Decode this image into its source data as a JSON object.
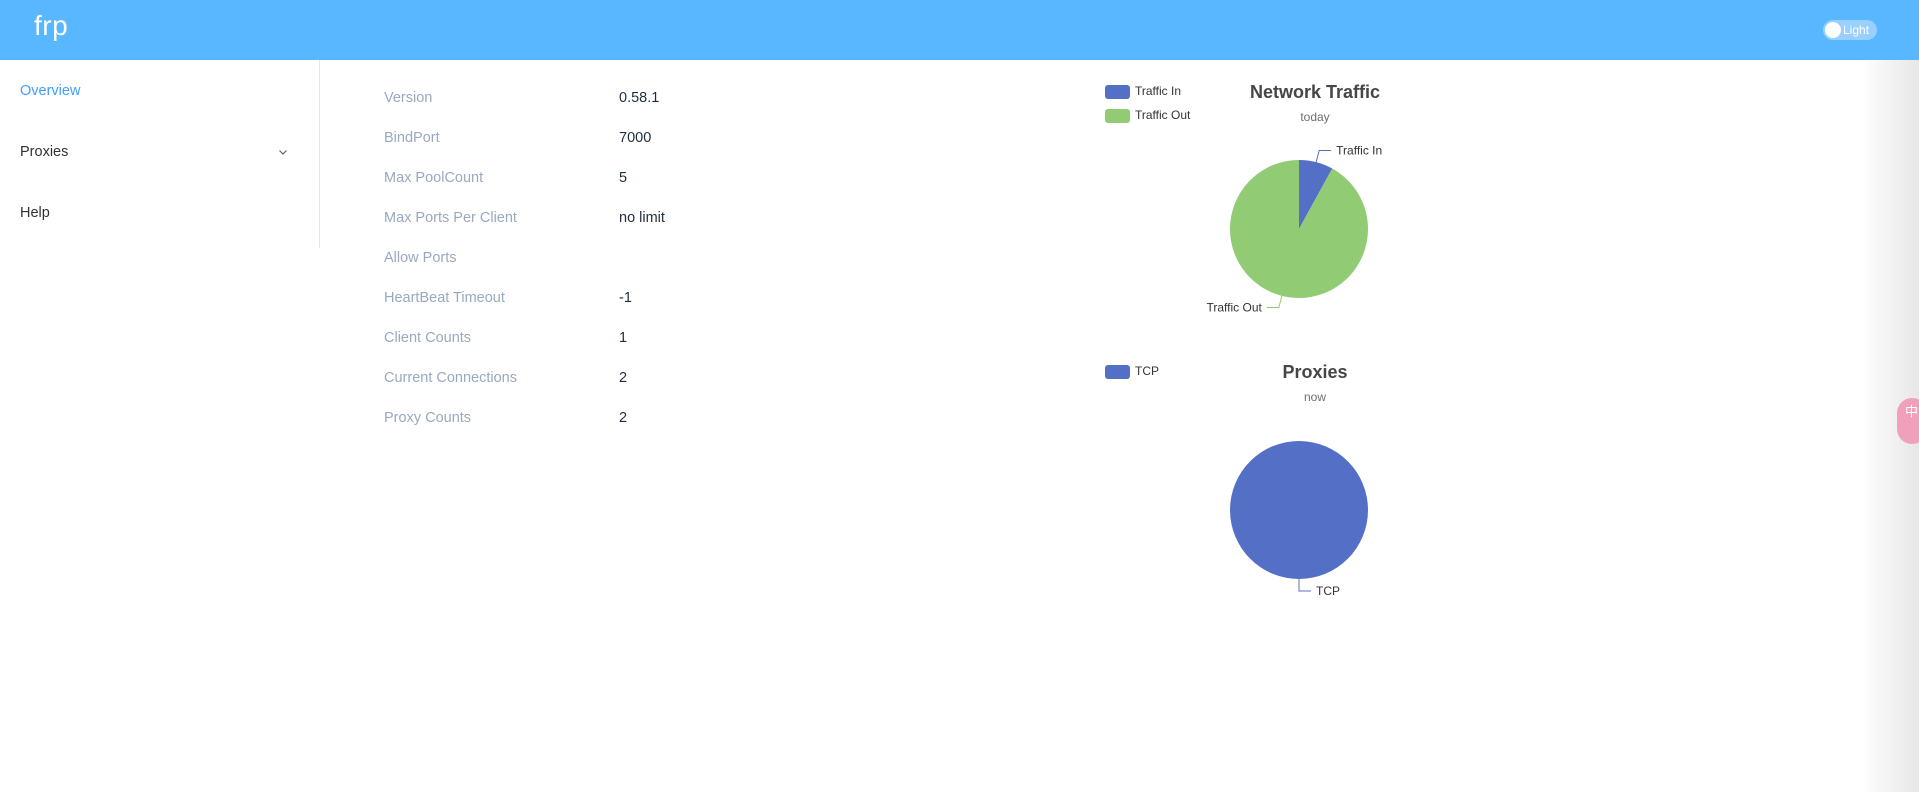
{
  "header": {
    "logo": "frp",
    "theme_toggle_label": "Light"
  },
  "sidebar": {
    "items": [
      {
        "label": "Overview",
        "active": true
      },
      {
        "label": "Proxies",
        "has_submenu": true,
        "icon": "chevron-down-icon"
      },
      {
        "label": "Help"
      }
    ]
  },
  "server_info": [
    {
      "label": "Version",
      "value": "0.58.1"
    },
    {
      "label": "BindPort",
      "value": "7000"
    },
    {
      "label": "Max PoolCount",
      "value": "5"
    },
    {
      "label": "Max Ports Per Client",
      "value": "no limit"
    },
    {
      "label": "Allow Ports",
      "value": ""
    },
    {
      "label": "HeartBeat Timeout",
      "value": "-1"
    },
    {
      "label": "Client Counts",
      "value": "1"
    },
    {
      "label": "Current Connections",
      "value": "2"
    },
    {
      "label": "Proxy Counts",
      "value": "2"
    }
  ],
  "chart_data": [
    {
      "type": "pie",
      "title": "Network Traffic",
      "subtitle": "today",
      "legend_placement": "top-left",
      "slices": [
        {
          "name": "Traffic In",
          "value": 8,
          "color": "#5470c6"
        },
        {
          "name": "Traffic Out",
          "value": 92,
          "color": "#91cc75"
        }
      ]
    },
    {
      "type": "pie",
      "title": "Proxies",
      "subtitle": "now",
      "legend_placement": "top-left",
      "slices": [
        {
          "name": "TCP",
          "value": 2,
          "color": "#5470c6"
        }
      ]
    }
  ],
  "side_widget": {
    "text": "中"
  }
}
